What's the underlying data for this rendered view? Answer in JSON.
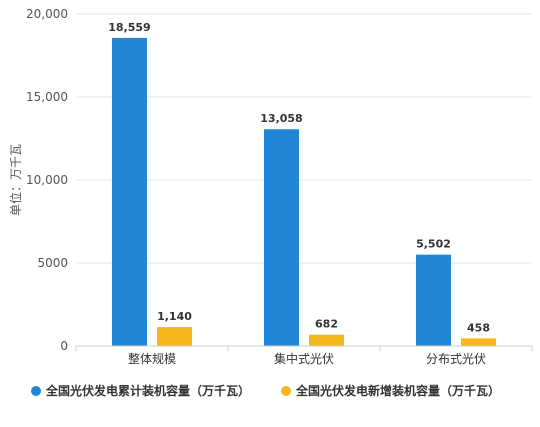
{
  "chart_data": {
    "type": "bar",
    "title": "",
    "xlabel": "",
    "ylabel": "单位：万千瓦",
    "ylim": [
      0,
      20000
    ],
    "yticks": [
      0,
      5000,
      10000,
      15000,
      20000
    ],
    "ytick_labels": [
      "0",
      "5000",
      "10,000",
      "15,000",
      "20,000"
    ],
    "grid": true,
    "legend_position": "bottom",
    "categories": [
      "整体规模",
      "集中式光伏",
      "分布式光伏"
    ],
    "series": [
      {
        "name": "全国光伏发电累计装机容量（万千瓦）",
        "color": "#1f86d8",
        "values": [
          18559,
          13058,
          5502
        ],
        "labels": [
          "18,559",
          "13,058",
          "5,502"
        ]
      },
      {
        "name": "全国光伏发电新增装机容量（万千瓦）",
        "color": "#f6b71d",
        "values": [
          1140,
          682,
          458
        ],
        "labels": [
          "1,140",
          "682",
          "458"
        ]
      }
    ]
  }
}
